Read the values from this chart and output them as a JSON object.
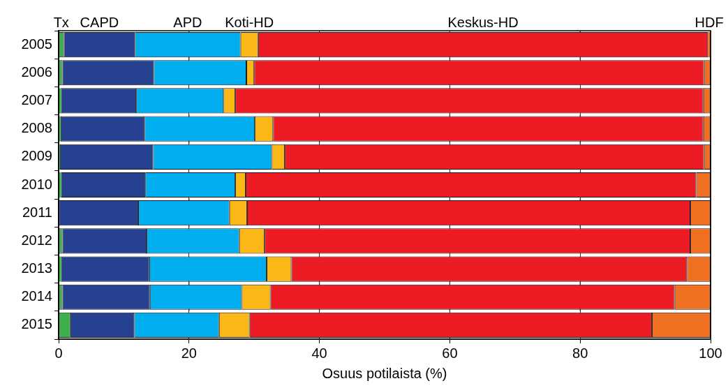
{
  "chart_data": {
    "type": "bar",
    "orientation": "horizontal",
    "stacked": true,
    "xlabel": "Osuus potilaista (%)",
    "categories": [
      "2005",
      "2006",
      "2007",
      "2008",
      "2009",
      "2010",
      "2011",
      "2012",
      "2013",
      "2014",
      "2015"
    ],
    "series": [
      {
        "name": "Tx",
        "color": "#3cb04a",
        "values": [
          0.8,
          0.6,
          0.4,
          0.3,
          0.2,
          0.4,
          0,
          0.6,
          0.4,
          0.6,
          1.8
        ]
      },
      {
        "name": "CAPD",
        "color": "#26418f",
        "values": [
          10.9,
          14.0,
          11.5,
          12.9,
          14.3,
          12.9,
          12.2,
          12.9,
          13.5,
          13.4,
          9.8
        ]
      },
      {
        "name": "APD",
        "color": "#00adee",
        "values": [
          16.2,
          14.2,
          13.4,
          16.9,
          18.2,
          13.8,
          14.0,
          14.2,
          18.0,
          14.1,
          13.0
        ]
      },
      {
        "name": "Koti-HD",
        "color": "#fbb715",
        "values": [
          2.7,
          1.2,
          1.8,
          2.8,
          2.0,
          1.6,
          2.7,
          3.9,
          3.8,
          4.4,
          4.7
        ]
      },
      {
        "name": "Keskus-HD",
        "color": "#ed1c24",
        "values": [
          69.0,
          69.0,
          71.8,
          66.0,
          64.3,
          69.1,
          68.0,
          65.3,
          60.7,
          62.0,
          61.7
        ]
      },
      {
        "name": "HDF",
        "color": "#f07022",
        "values": [
          0.4,
          1.0,
          1.1,
          1.1,
          1.0,
          2.2,
          3.1,
          3.1,
          3.6,
          5.5,
          9.0
        ]
      }
    ],
    "xlim": [
      0,
      100
    ],
    "xticks": [
      0,
      20,
      40,
      60,
      80,
      100
    ],
    "grid": "x"
  }
}
